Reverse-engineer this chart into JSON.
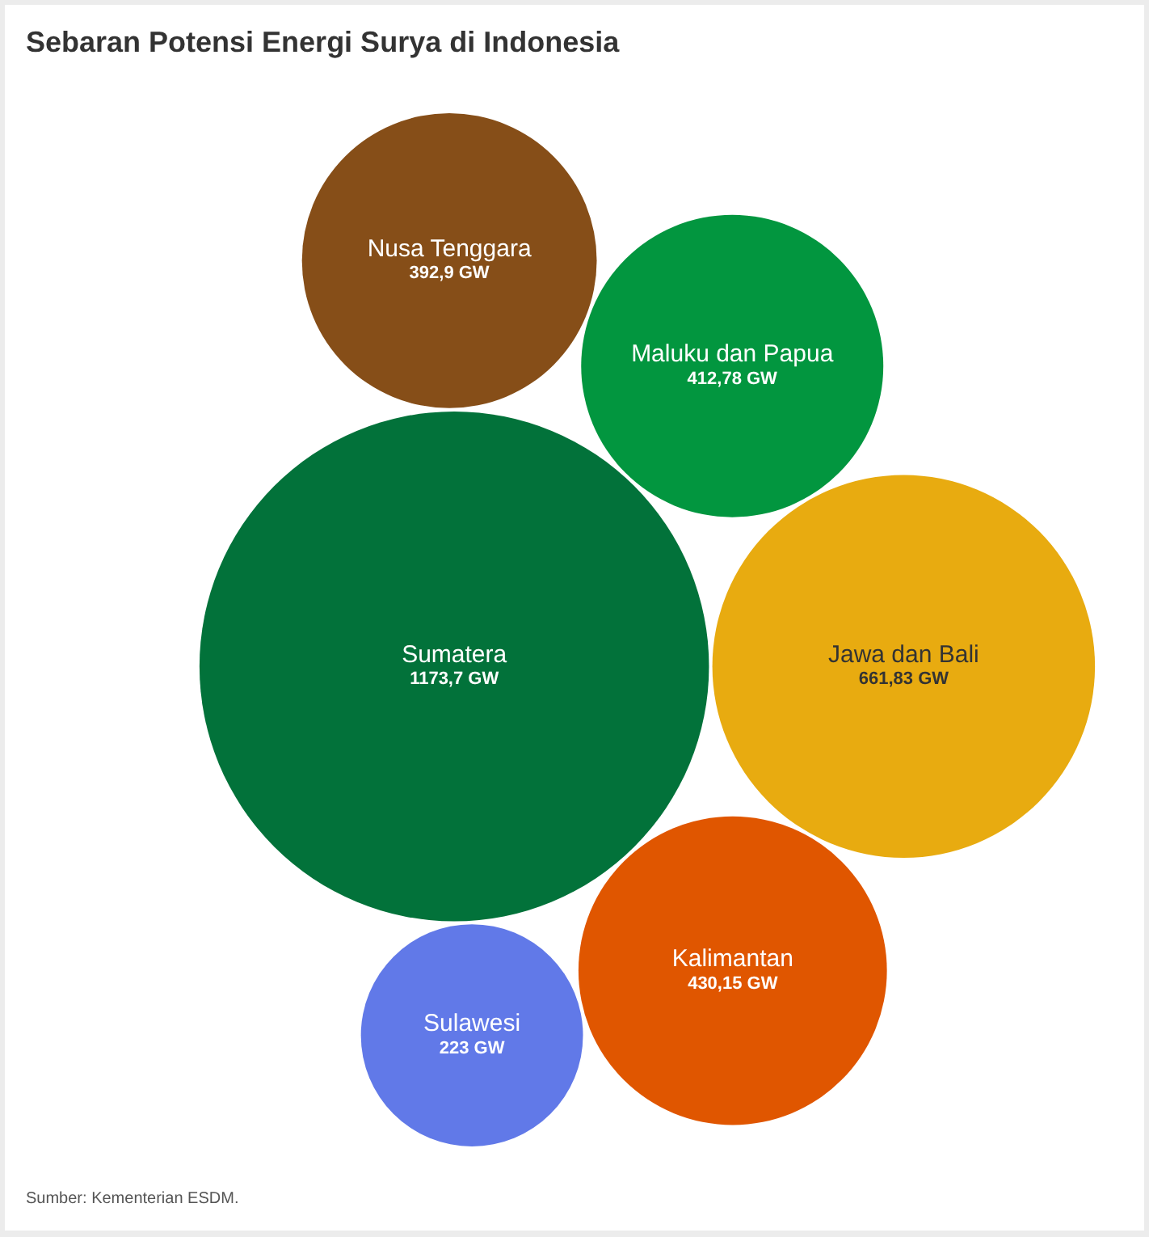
{
  "chart_data": {
    "type": "other",
    "title": "Sebaran Potensi Energi Surya di Indonesia",
    "categories": [
      "Sumatera",
      "Jawa dan Bali",
      "Maluku dan Papua",
      "Kalimantan",
      "Sulawesi",
      "Nusa Tenggara"
    ],
    "values": [
      1173.7,
      661.83,
      412.78,
      430.15,
      223,
      392.9
    ],
    "value_labels": [
      "1173,7 GW",
      "661,83 GW",
      "412,78 GW",
      "430,15 GW",
      "223 GW",
      "392,9 GW"
    ],
    "colors": [
      "#02723a",
      "#e8ab10",
      "#02963f",
      "#e05600",
      "#6179e8",
      "#864e18"
    ],
    "annotations": [
      "Sumber: Kementerian ESDM."
    ]
  }
}
